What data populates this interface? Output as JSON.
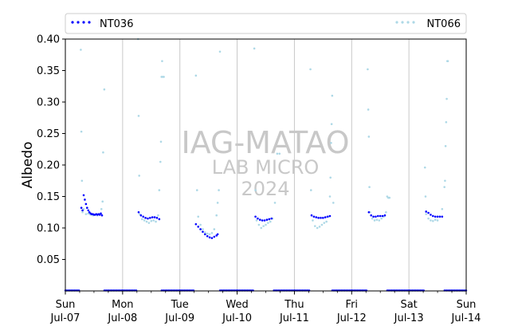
{
  "chart_data": {
    "type": "scatter",
    "title": "",
    "xlabel": "",
    "ylabel": "Albedo",
    "ylim": [
      0,
      0.4
    ],
    "xlim": [
      "2024-07-07",
      "2024-07-14"
    ],
    "y_ticks": [
      0.05,
      0.1,
      0.15,
      0.2,
      0.25,
      0.3,
      0.35,
      0.4
    ],
    "y_tick_labels": [
      "0.05",
      "0.10",
      "0.15",
      "0.20",
      "0.25",
      "0.30",
      "0.35",
      "0.40"
    ],
    "x_ticks": [
      {
        "date": "2024-07-07",
        "day": "Sun",
        "label": "Jul-07"
      },
      {
        "date": "2024-07-08",
        "day": "Mon",
        "label": "Jul-08"
      },
      {
        "date": "2024-07-09",
        "day": "Tue",
        "label": "Jul-09"
      },
      {
        "date": "2024-07-10",
        "day": "Wed",
        "label": "Jul-10"
      },
      {
        "date": "2024-07-11",
        "day": "Thu",
        "label": "Jul-11"
      },
      {
        "date": "2024-07-12",
        "day": "Fri",
        "label": "Jul-12"
      },
      {
        "date": "2024-07-13",
        "day": "Sat",
        "label": "Jul-13"
      },
      {
        "date": "2024-07-14",
        "day": "Sun",
        "label": "Jul-14"
      }
    ],
    "x_minor_ticks_per_day": 4,
    "grid": "vertical-major",
    "legend_position": "top",
    "watermark": [
      "IAG-MATAO",
      "LAB MICRO",
      "2024"
    ],
    "series": [
      {
        "name": "NT036",
        "color": "#0000ff",
        "marker": "dot",
        "night_value": 0,
        "daily_profiles": [
          {
            "date": "2024-07-07",
            "points": [
              [
                0.28,
                0.132
              ],
              [
                0.3,
                0.128
              ],
              [
                0.32,
                0.152
              ],
              [
                0.34,
                0.145
              ],
              [
                0.36,
                0.138
              ],
              [
                0.38,
                0.132
              ],
              [
                0.4,
                0.128
              ],
              [
                0.42,
                0.125
              ],
              [
                0.44,
                0.123
              ],
              [
                0.46,
                0.122
              ],
              [
                0.48,
                0.122
              ],
              [
                0.5,
                0.121
              ],
              [
                0.52,
                0.121
              ],
              [
                0.54,
                0.122
              ],
              [
                0.56,
                0.121
              ],
              [
                0.58,
                0.122
              ],
              [
                0.6,
                0.121
              ],
              [
                0.62,
                0.123
              ],
              [
                0.64,
                0.12
              ]
            ]
          },
          {
            "date": "2024-07-08",
            "points": [
              [
                0.28,
                0.125
              ],
              [
                0.32,
                0.12
              ],
              [
                0.36,
                0.118
              ],
              [
                0.4,
                0.116
              ],
              [
                0.44,
                0.115
              ],
              [
                0.48,
                0.116
              ],
              [
                0.52,
                0.117
              ],
              [
                0.56,
                0.117
              ],
              [
                0.6,
                0.116
              ],
              [
                0.64,
                0.114
              ]
            ]
          },
          {
            "date": "2024-07-09",
            "points": [
              [
                0.28,
                0.106
              ],
              [
                0.32,
                0.102
              ],
              [
                0.36,
                0.098
              ],
              [
                0.4,
                0.094
              ],
              [
                0.44,
                0.09
              ],
              [
                0.48,
                0.087
              ],
              [
                0.52,
                0.085
              ],
              [
                0.56,
                0.084
              ],
              [
                0.6,
                0.086
              ],
              [
                0.64,
                0.088
              ],
              [
                0.66,
                0.09
              ]
            ]
          },
          {
            "date": "2024-07-10",
            "points": [
              [
                0.32,
                0.118
              ],
              [
                0.36,
                0.115
              ],
              [
                0.4,
                0.113
              ],
              [
                0.44,
                0.112
              ],
              [
                0.48,
                0.112
              ],
              [
                0.52,
                0.113
              ],
              [
                0.56,
                0.114
              ],
              [
                0.6,
                0.115
              ]
            ]
          },
          {
            "date": "2024-07-11",
            "points": [
              [
                0.3,
                0.12
              ],
              [
                0.34,
                0.118
              ],
              [
                0.38,
                0.117
              ],
              [
                0.42,
                0.116
              ],
              [
                0.46,
                0.116
              ],
              [
                0.5,
                0.116
              ],
              [
                0.54,
                0.117
              ],
              [
                0.58,
                0.118
              ],
              [
                0.62,
                0.119
              ]
            ]
          },
          {
            "date": "2024-07-12",
            "points": [
              [
                0.3,
                0.125
              ],
              [
                0.34,
                0.12
              ],
              [
                0.38,
                0.118
              ],
              [
                0.42,
                0.118
              ],
              [
                0.46,
                0.119
              ],
              [
                0.5,
                0.119
              ],
              [
                0.54,
                0.119
              ],
              [
                0.58,
                0.12
              ]
            ]
          },
          {
            "date": "2024-07-13",
            "points": [
              [
                0.3,
                0.126
              ],
              [
                0.34,
                0.124
              ],
              [
                0.38,
                0.121
              ],
              [
                0.42,
                0.119
              ],
              [
                0.46,
                0.118
              ],
              [
                0.5,
                0.118
              ],
              [
                0.54,
                0.118
              ],
              [
                0.58,
                0.118
              ]
            ]
          }
        ]
      },
      {
        "name": "NT066",
        "color": "#add8e6",
        "marker": "dot",
        "night_value": 0,
        "daily_profiles": [
          {
            "date": "2024-07-07",
            "points": [
              [
                0.27,
                0.383
              ],
              [
                0.28,
                0.253
              ],
              [
                0.29,
                0.175
              ],
              [
                0.3,
                0.125
              ],
              [
                0.32,
                0.13
              ],
              [
                0.36,
                0.122
              ],
              [
                0.4,
                0.123
              ],
              [
                0.44,
                0.121
              ],
              [
                0.48,
                0.12
              ],
              [
                0.52,
                0.121
              ],
              [
                0.56,
                0.12
              ],
              [
                0.6,
                0.122
              ],
              [
                0.63,
                0.13
              ],
              [
                0.65,
                0.142
              ],
              [
                0.66,
                0.22
              ],
              [
                0.68,
                0.32
              ]
            ]
          },
          {
            "date": "2024-07-08",
            "points": [
              [
                0.27,
                0.4
              ],
              [
                0.28,
                0.278
              ],
              [
                0.29,
                0.183
              ],
              [
                0.3,
                0.122
              ],
              [
                0.34,
                0.114
              ],
              [
                0.38,
                0.112
              ],
              [
                0.42,
                0.11
              ],
              [
                0.46,
                0.108
              ],
              [
                0.5,
                0.111
              ],
              [
                0.54,
                0.112
              ],
              [
                0.58,
                0.11
              ],
              [
                0.62,
                0.12
              ],
              [
                0.64,
                0.16
              ],
              [
                0.66,
                0.205
              ],
              [
                0.67,
                0.237
              ],
              [
                0.68,
                0.34
              ],
              [
                0.7,
                0.34
              ],
              [
                0.72,
                0.34
              ],
              [
                0.69,
                0.365
              ]
            ]
          },
          {
            "date": "2024-07-09",
            "points": [
              [
                0.28,
                0.342
              ],
              [
                0.3,
                0.16
              ],
              [
                0.32,
                0.118
              ],
              [
                0.36,
                0.105
              ],
              [
                0.4,
                0.098
              ],
              [
                0.44,
                0.093
              ],
              [
                0.48,
                0.091
              ],
              [
                0.52,
                0.09
              ],
              [
                0.56,
                0.092
              ],
              [
                0.6,
                0.098
              ],
              [
                0.64,
                0.12
              ],
              [
                0.66,
                0.14
              ],
              [
                0.68,
                0.16
              ],
              [
                0.7,
                0.38
              ]
            ]
          },
          {
            "date": "2024-07-10",
            "points": [
              [
                0.3,
                0.385
              ],
              [
                0.32,
                0.16
              ],
              [
                0.34,
                0.112
              ],
              [
                0.38,
                0.105
              ],
              [
                0.42,
                0.1
              ],
              [
                0.46,
                0.103
              ],
              [
                0.5,
                0.105
              ],
              [
                0.54,
                0.108
              ],
              [
                0.58,
                0.11
              ],
              [
                0.62,
                0.115
              ],
              [
                0.66,
                0.14
              ],
              [
                0.7,
                0.218
              ],
              [
                0.74,
                0.218
              ]
            ]
          },
          {
            "date": "2024-07-11",
            "points": [
              [
                0.28,
                0.352
              ],
              [
                0.29,
                0.16
              ],
              [
                0.32,
                0.112
              ],
              [
                0.36,
                0.103
              ],
              [
                0.4,
                0.1
              ],
              [
                0.44,
                0.102
              ],
              [
                0.48,
                0.105
              ],
              [
                0.52,
                0.108
              ],
              [
                0.56,
                0.11
              ],
              [
                0.6,
                0.118
              ],
              [
                0.62,
                0.15
              ],
              [
                0.63,
                0.18
              ],
              [
                0.64,
                0.235
              ],
              [
                0.65,
                0.265
              ],
              [
                0.66,
                0.31
              ],
              [
                0.68,
                0.14
              ]
            ]
          },
          {
            "date": "2024-07-12",
            "points": [
              [
                0.28,
                0.352
              ],
              [
                0.29,
                0.288
              ],
              [
                0.3,
                0.245
              ],
              [
                0.31,
                0.165
              ],
              [
                0.32,
                0.125
              ],
              [
                0.36,
                0.115
              ],
              [
                0.4,
                0.112
              ],
              [
                0.44,
                0.113
              ],
              [
                0.48,
                0.112
              ],
              [
                0.52,
                0.115
              ],
              [
                0.56,
                0.118
              ],
              [
                0.6,
                0.125
              ],
              [
                0.62,
                0.15
              ],
              [
                0.64,
                0.148
              ],
              [
                0.66,
                0.148
              ]
            ]
          },
          {
            "date": "2024-07-13",
            "points": [
              [
                0.28,
                0.196
              ],
              [
                0.29,
                0.15
              ],
              [
                0.3,
                0.122
              ],
              [
                0.34,
                0.115
              ],
              [
                0.38,
                0.112
              ],
              [
                0.42,
                0.111
              ],
              [
                0.46,
                0.113
              ],
              [
                0.5,
                0.112
              ],
              [
                0.54,
                0.118
              ],
              [
                0.58,
                0.13
              ],
              [
                0.62,
                0.165
              ],
              [
                0.63,
                0.175
              ],
              [
                0.64,
                0.23
              ],
              [
                0.65,
                0.268
              ],
              [
                0.66,
                0.305
              ],
              [
                0.67,
                0.365
              ],
              [
                0.68,
                0.365
              ]
            ]
          }
        ]
      }
    ]
  }
}
